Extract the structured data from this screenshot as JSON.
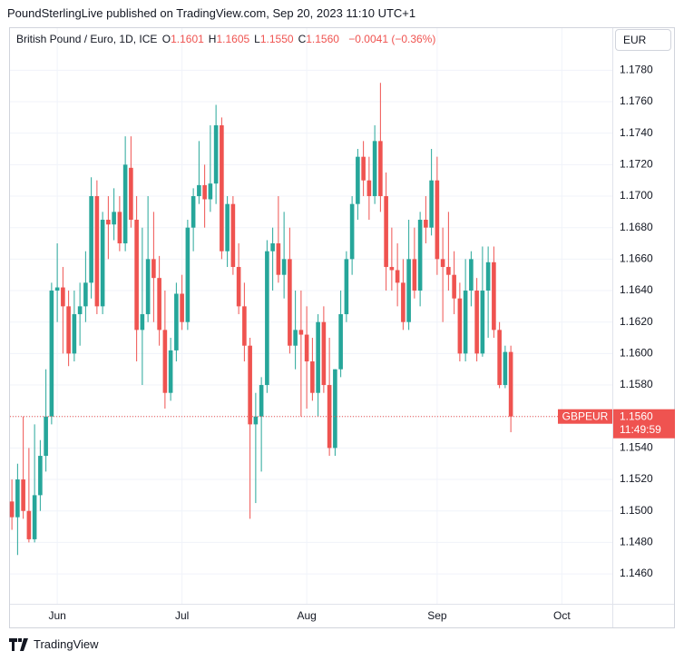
{
  "published": "PoundSterlingLive published on TradingView.com, Sep 20, 2023 11:10 UTC+1",
  "brand": "TradingView",
  "currency": "EUR",
  "chart_data": {
    "type": "candlestick",
    "title": "British Pound / Euro, 1D, ICE",
    "legend_fields": [
      {
        "label": "O",
        "value": "1.1601"
      },
      {
        "label": "H",
        "value": "1.1605"
      },
      {
        "label": "L",
        "value": "1.1550"
      },
      {
        "label": "C",
        "value": "1.1560"
      }
    ],
    "change": "−0.0041 (−0.36%)",
    "symbol": "GBPEUR",
    "countdown": "11:49:59",
    "last_price": {
      "value": 1.156,
      "label": "1.1560"
    },
    "up_color": "#26a69a",
    "down_color": "#ef5350",
    "grid": true,
    "xlim": [
      -0.5,
      105.9
    ],
    "xticks": [
      {
        "value": 8,
        "label": "Jun"
      },
      {
        "value": 30,
        "label": "Jul"
      },
      {
        "value": 52,
        "label": "Aug"
      },
      {
        "value": 75,
        "label": "Sep"
      },
      {
        "value": 97,
        "label": "Oct"
      }
    ],
    "ylim": [
      1.1441,
      1.179
    ],
    "yticks": [
      {
        "value": 1.146,
        "label": "1.1460"
      },
      {
        "value": 1.148,
        "label": "1.1480"
      },
      {
        "value": 1.15,
        "label": "1.1500"
      },
      {
        "value": 1.152,
        "label": "1.1520"
      },
      {
        "value": 1.154,
        "label": "1.1540"
      },
      {
        "value": 1.156,
        "label": "1.1560"
      },
      {
        "value": 1.158,
        "label": "1.1580"
      },
      {
        "value": 1.16,
        "label": "1.1600"
      },
      {
        "value": 1.162,
        "label": "1.1620"
      },
      {
        "value": 1.164,
        "label": "1.1640"
      },
      {
        "value": 1.166,
        "label": "1.1660"
      },
      {
        "value": 1.168,
        "label": "1.1680"
      },
      {
        "value": 1.17,
        "label": "1.1700"
      },
      {
        "value": 1.172,
        "label": "1.1720"
      },
      {
        "value": 1.174,
        "label": "1.1740"
      },
      {
        "value": 1.176,
        "label": "1.1760"
      },
      {
        "value": 1.178,
        "label": "1.1780"
      }
    ],
    "open": [
      1.1506,
      1.1496,
      1.152,
      1.15,
      1.1482,
      1.151,
      1.1535,
      1.156,
      1.164,
      1.1642,
      1.163,
      1.16,
      1.1625,
      1.163,
      1.1645,
      1.17,
      1.163,
      1.1685,
      1.1682,
      1.169,
      1.167,
      1.1718,
      1.1685,
      1.1615,
      1.1625,
      1.166,
      1.1648,
      1.1615,
      1.1575,
      1.1602,
      1.1638,
      1.162,
      1.168,
      1.17,
      1.1707,
      1.1698,
      1.1708,
      1.1745,
      1.1665,
      1.1695,
      1.1655,
      1.163,
      1.1605,
      1.1555,
      1.156,
      1.158,
      1.1665,
      1.167,
      1.165,
      1.166,
      1.1605,
      1.1615,
      1.1612,
      1.1595,
      1.1575,
      1.162,
      1.158,
      1.154,
      1.159,
      1.1625,
      1.166,
      1.1695,
      1.1725,
      1.171,
      1.17,
      1.1735,
      1.17,
      1.1655,
      1.1653,
      1.1645,
      1.162,
      1.166,
      1.164,
      1.1685,
      1.168,
      1.171,
      1.166,
      1.1655,
      1.165,
      1.1635,
      1.16,
      1.164,
      1.164,
      1.16,
      1.164,
      1.1658,
      1.1615,
      1.158,
      1.1601
    ],
    "high": [
      1.152,
      1.153,
      1.156,
      1.154,
      1.1555,
      1.1545,
      1.159,
      1.1645,
      1.167,
      1.1655,
      1.164,
      1.164,
      1.1645,
      1.1665,
      1.1712,
      1.171,
      1.169,
      1.17,
      1.1705,
      1.17,
      1.1738,
      1.1738,
      1.17,
      1.168,
      1.17,
      1.169,
      1.1662,
      1.164,
      1.161,
      1.1645,
      1.165,
      1.1685,
      1.1705,
      1.1735,
      1.172,
      1.1745,
      1.1758,
      1.175,
      1.17,
      1.17,
      1.167,
      1.1645,
      1.161,
      1.1575,
      1.1585,
      1.1672,
      1.168,
      1.17,
      1.169,
      1.168,
      1.164,
      1.164,
      1.163,
      1.161,
      1.1625,
      1.163,
      1.161,
      1.159,
      1.164,
      1.1665,
      1.17,
      1.173,
      1.1735,
      1.1725,
      1.1745,
      1.1772,
      1.1715,
      1.168,
      1.167,
      1.166,
      1.1685,
      1.168,
      1.169,
      1.17,
      1.173,
      1.1725,
      1.168,
      1.169,
      1.1665,
      1.1645,
      1.166,
      1.1665,
      1.1648,
      1.1668,
      1.1668,
      1.1668,
      1.162,
      1.1605,
      1.1605
    ],
    "low": [
      1.1488,
      1.1472,
      1.1495,
      1.148,
      1.148,
      1.15,
      1.1525,
      1.1555,
      1.162,
      1.16,
      1.1592,
      1.1595,
      1.1605,
      1.162,
      1.1635,
      1.1625,
      1.1625,
      1.166,
      1.1672,
      1.1665,
      1.1665,
      1.168,
      1.1595,
      1.158,
      1.162,
      1.162,
      1.1605,
      1.1565,
      1.157,
      1.1595,
      1.1615,
      1.1615,
      1.1665,
      1.1695,
      1.168,
      1.169,
      1.1695,
      1.166,
      1.1655,
      1.165,
      1.1625,
      1.1595,
      1.1495,
      1.1505,
      1.1525,
      1.1575,
      1.164,
      1.1645,
      1.1635,
      1.16,
      1.159,
      1.156,
      1.1565,
      1.157,
      1.156,
      1.1575,
      1.1535,
      1.1535,
      1.1585,
      1.162,
      1.165,
      1.1685,
      1.17,
      1.1685,
      1.1695,
      1.169,
      1.164,
      1.164,
      1.163,
      1.1615,
      1.1615,
      1.1635,
      1.163,
      1.167,
      1.1675,
      1.165,
      1.162,
      1.164,
      1.1625,
      1.1595,
      1.1595,
      1.163,
      1.1595,
      1.1598,
      1.161,
      1.161,
      1.1578,
      1.1578,
      1.155
    ],
    "close": [
      1.1496,
      1.152,
      1.15,
      1.1482,
      1.151,
      1.1535,
      1.156,
      1.164,
      1.1642,
      1.163,
      1.16,
      1.1625,
      1.163,
      1.1645,
      1.17,
      1.163,
      1.1685,
      1.1682,
      1.169,
      1.167,
      1.172,
      1.1685,
      1.1615,
      1.1625,
      1.166,
      1.1648,
      1.1615,
      1.1575,
      1.1602,
      1.1638,
      1.162,
      1.168,
      1.17,
      1.1707,
      1.1698,
      1.1708,
      1.1745,
      1.1665,
      1.1695,
      1.1655,
      1.163,
      1.1605,
      1.1555,
      1.156,
      1.158,
      1.1665,
      1.167,
      1.165,
      1.166,
      1.1605,
      1.1615,
      1.1612,
      1.1595,
      1.1575,
      1.162,
      1.158,
      1.154,
      1.159,
      1.1625,
      1.166,
      1.1695,
      1.1725,
      1.171,
      1.17,
      1.1735,
      1.17,
      1.1655,
      1.1653,
      1.1645,
      1.162,
      1.166,
      1.164,
      1.1685,
      1.168,
      1.171,
      1.166,
      1.1655,
      1.165,
      1.1635,
      1.16,
      1.164,
      1.166,
      1.16,
      1.164,
      1.1658,
      1.1615,
      1.158,
      1.1601,
      1.156
    ]
  }
}
